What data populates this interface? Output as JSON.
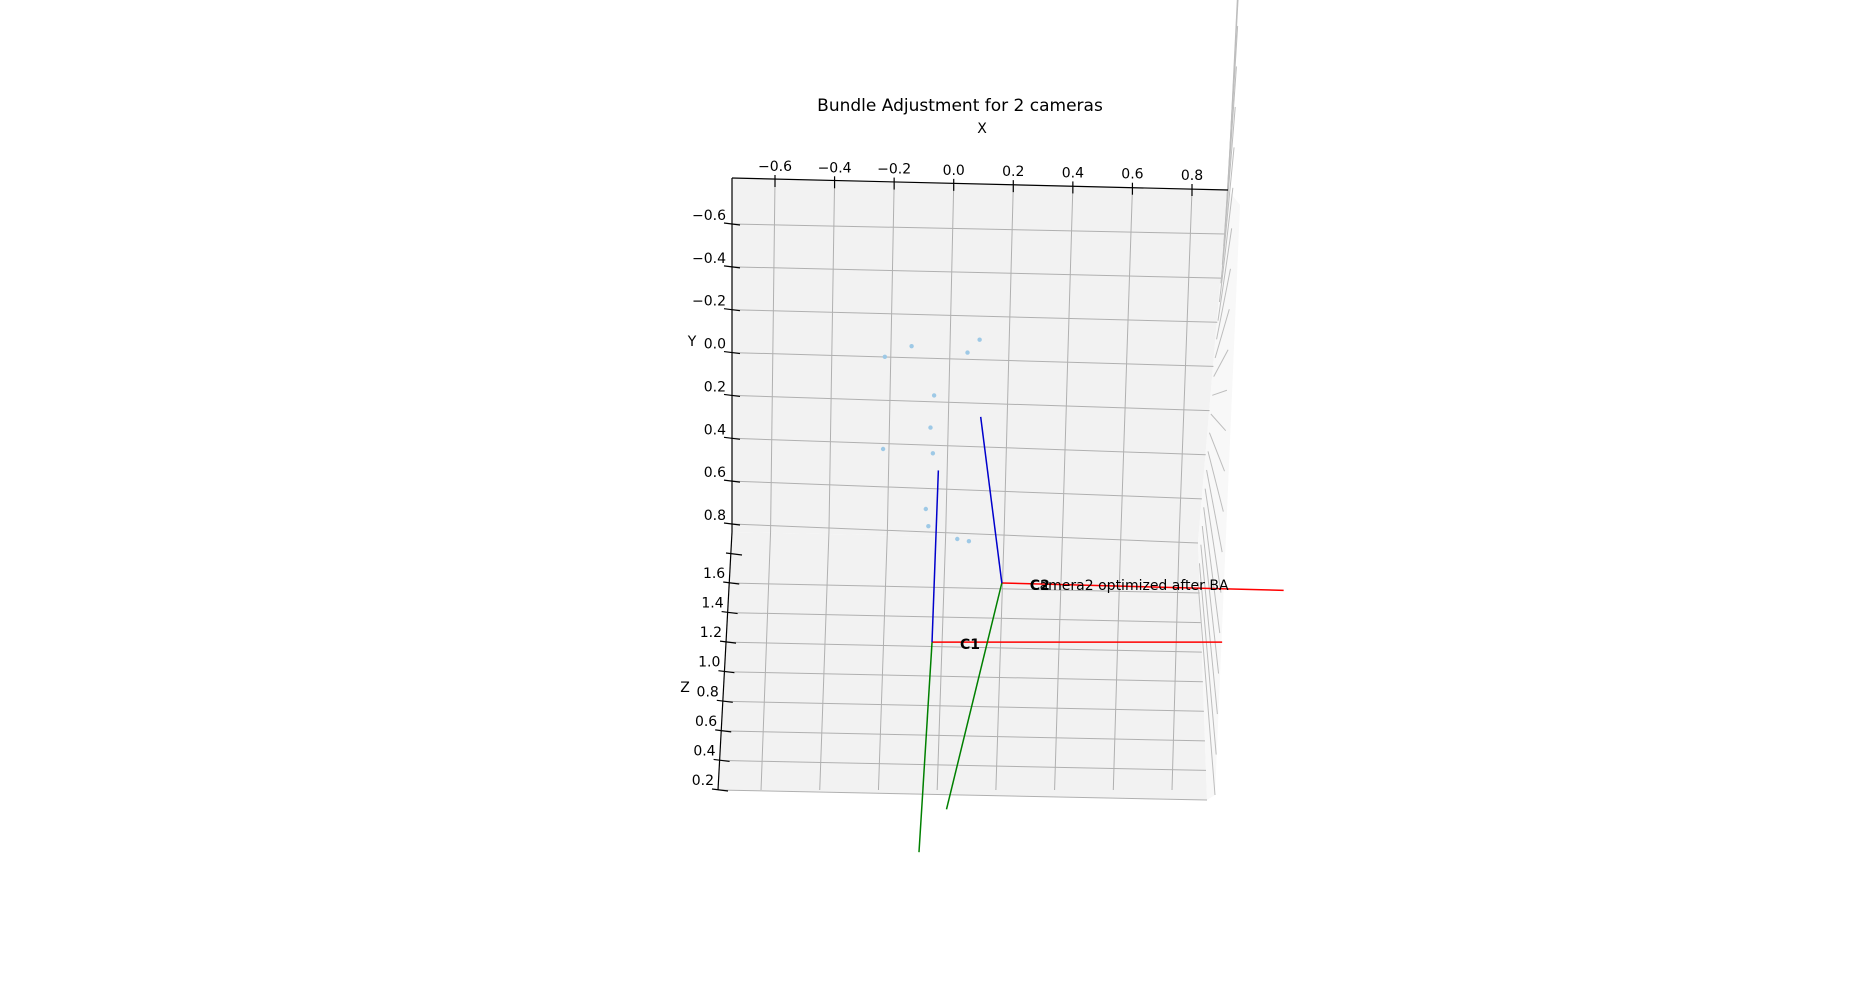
{
  "chart_data": {
    "type": "scatter",
    "projection": "3d",
    "title": "Bundle Adjustment for 2 cameras",
    "xlabel": "X",
    "ylabel": "Y",
    "zlabel": "Z",
    "xlim": [
      -0.75,
      0.9
    ],
    "ylim": [
      -0.75,
      0.95
    ],
    "zlim": [
      0.1,
      1.85
    ],
    "x_ticks": [
      "−0.6",
      "−0.4",
      "−0.2",
      "0.0",
      "0.2",
      "0.4",
      "0.6",
      "0.8"
    ],
    "y_ticks": [
      "−0.6",
      "−0.4",
      "−0.2",
      "0.0",
      "0.2",
      "0.4",
      "0.6",
      "0.8"
    ],
    "z_ticks": [
      "1.6",
      "1.4",
      "1.2",
      "1.0",
      "0.8",
      "0.6",
      "0.4",
      "0.2"
    ],
    "grid": true,
    "colors": {
      "points": "#9ec9e6",
      "x_axis": "#ff0000",
      "y_axis": "#008000",
      "z_axis": "#0000cc",
      "pane": "#f2f2f2"
    },
    "points": [
      {
        "x": -0.13,
        "y": -0.03
      },
      {
        "x": -0.22,
        "y": 0.02
      },
      {
        "x": 0.06,
        "y": 0.0
      },
      {
        "x": 0.1,
        "y": -0.06
      },
      {
        "x": -0.05,
        "y": 0.2
      },
      {
        "x": -0.06,
        "y": 0.35
      },
      {
        "x": -0.22,
        "y": 0.45
      },
      {
        "x": -0.05,
        "y": 0.47
      },
      {
        "x": -0.07,
        "y": 0.73
      },
      {
        "x": -0.06,
        "y": 0.81
      },
      {
        "x": 0.04,
        "y": 0.87
      },
      {
        "x": 0.08,
        "y": 0.88
      }
    ],
    "cameras": [
      {
        "label": "C1",
        "annotation": "",
        "origin": {
          "x": -0.03,
          "z": 1.2
        },
        "axes": [
          {
            "axis": "x",
            "end": {
              "x": 0.95,
              "z": 1.2
            }
          },
          {
            "axis": "y",
            "end": {
              "x": -0.06,
              "z": 0.05
            }
          },
          {
            "axis": "z",
            "end": {
              "x": -0.03,
              "y": 0.55
            }
          }
        ]
      },
      {
        "label": "C2",
        "annotation": "Camera2 optimized after BA",
        "origin": {
          "x": 0.2,
          "z": 1.6
        },
        "axes": [
          {
            "axis": "x",
            "end": {
              "x": 1.15,
              "z": 1.55
            }
          },
          {
            "axis": "y",
            "end": {
              "x": 0.03,
              "z": 0.34
            }
          },
          {
            "axis": "z",
            "end": {
              "x": 0.11,
              "y": 0.3
            }
          }
        ]
      }
    ]
  }
}
